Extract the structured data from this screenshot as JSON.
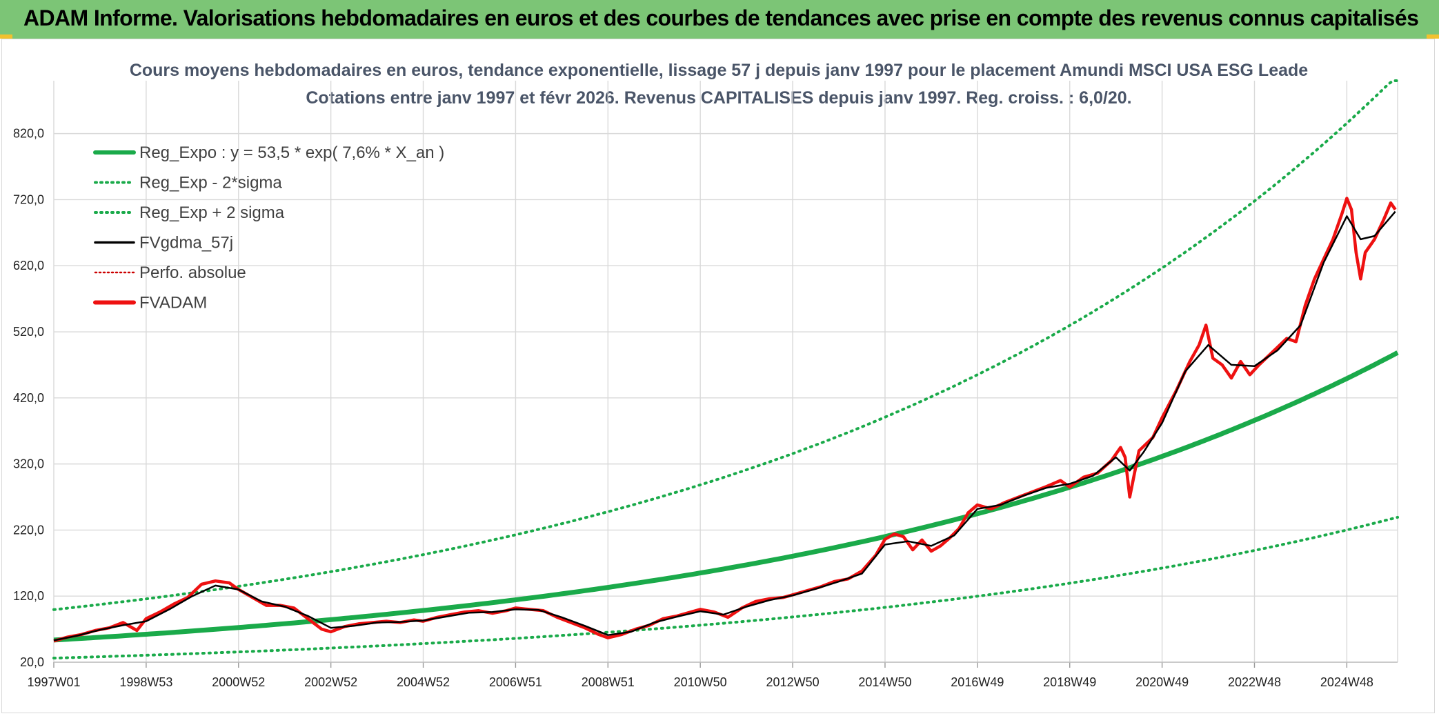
{
  "header": {
    "title": "ADAM Informe. Valorisations hebdomadaires en euros et des courbes de tendances avec prise en compte des revenus connus capitalisés"
  },
  "colors": {
    "banner": "#7cc576",
    "trend": "#1aaa4a",
    "fvadam": "#ee1111",
    "gdma": "#000000",
    "perfo": "#cc0000"
  },
  "chart_data": {
    "type": "line",
    "title": "Cours moyens hebdomadaires en euros, tendance exponentielle, lissage 57 j depuis janv 1997 pour le placement Amundi MSCI USA ESG Leade",
    "subtitle": "Cotations entre janv 1997 et févr 2026. Revenus CAPITALISES depuis janv 1997. Reg. croiss. : 6,0/20.",
    "xlabel": "",
    "ylabel": "",
    "xlim": [
      1997.0,
      2026.1
    ],
    "ylim": [
      20,
      900
    ],
    "y_ticks": [
      "20,0",
      "120,0",
      "220,0",
      "320,0",
      "420,0",
      "520,0",
      "620,0",
      "720,0",
      "820,0"
    ],
    "y_tick_values": [
      20,
      120,
      220,
      320,
      420,
      520,
      620,
      720,
      820
    ],
    "x_ticks": [
      "1997W01",
      "1998W53",
      "2000W52",
      "2002W52",
      "2004W52",
      "2006W51",
      "2008W51",
      "2010W50",
      "2012W50",
      "2014W50",
      "2016W49",
      "2018W49",
      "2020W49",
      "2022W48",
      "2024W48"
    ],
    "x_tick_values": [
      1997.0,
      1999.0,
      2001.0,
      2003.0,
      2005.0,
      2007.0,
      2009.0,
      2011.0,
      2013.0,
      2015.0,
      2017.0,
      2019.0,
      2021.0,
      2023.0,
      2025.0
    ],
    "legend": [
      {
        "label": "Reg_Expo : y = 53,5 * exp( 7,6% *  X_an )",
        "style": "solid-thick",
        "color": "#1aaa4a"
      },
      {
        "label": "Reg_Exp - 2*sigma",
        "style": "dotted",
        "color": "#1aaa4a"
      },
      {
        "label": "Reg_Exp + 2 sigma",
        "style": "dotted",
        "color": "#1aaa4a"
      },
      {
        "label": "FVgdma_57j",
        "style": "solid",
        "color": "#000000"
      },
      {
        "label": "Perfo. absolue",
        "style": "dotted-thin",
        "color": "#cc0000"
      },
      {
        "label": "FVADAM",
        "style": "solid-thick",
        "color": "#ee1111"
      }
    ],
    "regression": {
      "a": 53.5,
      "rate": 0.076,
      "x0": 1997.0,
      "lower_factor": 0.49,
      "upper_factor": 1.86,
      "cap": 900
    },
    "series": [
      {
        "name": "FVADAM",
        "points": [
          [
            1997.0,
            52
          ],
          [
            1997.3,
            58
          ],
          [
            1997.6,
            62
          ],
          [
            1997.9,
            68
          ],
          [
            1998.2,
            72
          ],
          [
            1998.5,
            80
          ],
          [
            1998.8,
            68
          ],
          [
            1999.0,
            86
          ],
          [
            1999.3,
            96
          ],
          [
            1999.6,
            108
          ],
          [
            1999.9,
            118
          ],
          [
            2000.2,
            138
          ],
          [
            2000.5,
            143
          ],
          [
            2000.8,
            140
          ],
          [
            2001.0,
            130
          ],
          [
            2001.3,
            118
          ],
          [
            2001.6,
            106
          ],
          [
            2001.9,
            106
          ],
          [
            2002.2,
            102
          ],
          [
            2002.5,
            86
          ],
          [
            2002.8,
            70
          ],
          [
            2003.0,
            66
          ],
          [
            2003.3,
            74
          ],
          [
            2003.6,
            78
          ],
          [
            2003.9,
            80
          ],
          [
            2004.2,
            82
          ],
          [
            2004.5,
            80
          ],
          [
            2004.8,
            84
          ],
          [
            2005.0,
            82
          ],
          [
            2005.3,
            88
          ],
          [
            2005.6,
            92
          ],
          [
            2005.9,
            96
          ],
          [
            2006.2,
            98
          ],
          [
            2006.5,
            94
          ],
          [
            2006.8,
            98
          ],
          [
            2007.0,
            102
          ],
          [
            2007.3,
            100
          ],
          [
            2007.6,
            98
          ],
          [
            2007.9,
            88
          ],
          [
            2008.2,
            80
          ],
          [
            2008.5,
            72
          ],
          [
            2008.8,
            62
          ],
          [
            2009.0,
            57
          ],
          [
            2009.3,
            62
          ],
          [
            2009.6,
            70
          ],
          [
            2009.9,
            76
          ],
          [
            2010.2,
            86
          ],
          [
            2010.5,
            90
          ],
          [
            2010.8,
            96
          ],
          [
            2011.0,
            100
          ],
          [
            2011.3,
            96
          ],
          [
            2011.6,
            88
          ],
          [
            2011.9,
            102
          ],
          [
            2012.2,
            112
          ],
          [
            2012.5,
            116
          ],
          [
            2012.8,
            118
          ],
          [
            2013.0,
            122
          ],
          [
            2013.3,
            128
          ],
          [
            2013.6,
            134
          ],
          [
            2013.9,
            142
          ],
          [
            2014.2,
            146
          ],
          [
            2014.5,
            158
          ],
          [
            2014.8,
            182
          ],
          [
            2015.0,
            206
          ],
          [
            2015.2,
            214
          ],
          [
            2015.4,
            210
          ],
          [
            2015.6,
            190
          ],
          [
            2015.8,
            205
          ],
          [
            2016.0,
            188
          ],
          [
            2016.2,
            196
          ],
          [
            2016.4,
            208
          ],
          [
            2016.6,
            222
          ],
          [
            2016.8,
            246
          ],
          [
            2017.0,
            258
          ],
          [
            2017.3,
            252
          ],
          [
            2017.6,
            262
          ],
          [
            2017.9,
            270
          ],
          [
            2018.2,
            278
          ],
          [
            2018.5,
            286
          ],
          [
            2018.8,
            295
          ],
          [
            2019.0,
            285
          ],
          [
            2019.3,
            300
          ],
          [
            2019.6,
            306
          ],
          [
            2019.9,
            325
          ],
          [
            2020.1,
            345
          ],
          [
            2020.2,
            330
          ],
          [
            2020.3,
            270
          ],
          [
            2020.5,
            340
          ],
          [
            2020.8,
            360
          ],
          [
            2021.0,
            390
          ],
          [
            2021.3,
            430
          ],
          [
            2021.6,
            475
          ],
          [
            2021.8,
            500
          ],
          [
            2021.95,
            530
          ],
          [
            2022.1,
            480
          ],
          [
            2022.3,
            470
          ],
          [
            2022.5,
            450
          ],
          [
            2022.7,
            475
          ],
          [
            2022.9,
            455
          ],
          [
            2023.1,
            470
          ],
          [
            2023.4,
            490
          ],
          [
            2023.7,
            510
          ],
          [
            2023.9,
            505
          ],
          [
            2024.1,
            560
          ],
          [
            2024.3,
            600
          ],
          [
            2024.5,
            630
          ],
          [
            2024.7,
            660
          ],
          [
            2024.9,
            700
          ],
          [
            2025.0,
            722
          ],
          [
            2025.1,
            705
          ],
          [
            2025.2,
            640
          ],
          [
            2025.3,
            600
          ],
          [
            2025.4,
            640
          ],
          [
            2025.6,
            660
          ],
          [
            2025.8,
            690
          ],
          [
            2025.95,
            715
          ],
          [
            2026.05,
            705
          ]
        ]
      },
      {
        "name": "FVgdma_57j",
        "points": [
          [
            1997.0,
            53
          ],
          [
            1997.5,
            60
          ],
          [
            1998.0,
            69
          ],
          [
            1998.5,
            76
          ],
          [
            1999.0,
            82
          ],
          [
            1999.5,
            100
          ],
          [
            2000.0,
            120
          ],
          [
            2000.5,
            136
          ],
          [
            2001.0,
            130
          ],
          [
            2001.5,
            112
          ],
          [
            2002.0,
            104
          ],
          [
            2002.5,
            90
          ],
          [
            2003.0,
            72
          ],
          [
            2003.5,
            75
          ],
          [
            2004.0,
            80
          ],
          [
            2004.5,
            81
          ],
          [
            2005.0,
            83
          ],
          [
            2005.5,
            89
          ],
          [
            2006.0,
            95
          ],
          [
            2006.5,
            96
          ],
          [
            2007.0,
            100
          ],
          [
            2007.5,
            99
          ],
          [
            2008.0,
            88
          ],
          [
            2008.5,
            75
          ],
          [
            2009.0,
            61
          ],
          [
            2009.5,
            66
          ],
          [
            2010.0,
            80
          ],
          [
            2010.5,
            89
          ],
          [
            2011.0,
            97
          ],
          [
            2011.5,
            92
          ],
          [
            2012.0,
            104
          ],
          [
            2012.5,
            114
          ],
          [
            2013.0,
            121
          ],
          [
            2013.5,
            131
          ],
          [
            2014.0,
            142
          ],
          [
            2014.5,
            154
          ],
          [
            2015.0,
            198
          ],
          [
            2015.5,
            203
          ],
          [
            2016.0,
            196
          ],
          [
            2016.5,
            212
          ],
          [
            2017.0,
            252
          ],
          [
            2017.5,
            258
          ],
          [
            2018.0,
            272
          ],
          [
            2018.5,
            284
          ],
          [
            2019.0,
            290
          ],
          [
            2019.5,
            302
          ],
          [
            2020.0,
            330
          ],
          [
            2020.3,
            310
          ],
          [
            2020.6,
            338
          ],
          [
            2021.0,
            382
          ],
          [
            2021.5,
            460
          ],
          [
            2022.0,
            500
          ],
          [
            2022.5,
            470
          ],
          [
            2023.0,
            468
          ],
          [
            2023.5,
            492
          ],
          [
            2024.0,
            530
          ],
          [
            2024.5,
            625
          ],
          [
            2025.0,
            695
          ],
          [
            2025.3,
            660
          ],
          [
            2025.6,
            665
          ],
          [
            2026.05,
            702
          ]
        ]
      }
    ]
  }
}
